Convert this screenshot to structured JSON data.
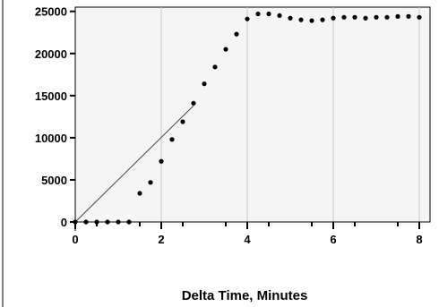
{
  "chart_data": {
    "type": "scatter",
    "title": "",
    "xlabel": "Delta Time, Minutes",
    "ylabel": "",
    "xlim": [
      0,
      8.25
    ],
    "ylim": [
      0,
      25500
    ],
    "x_ticks": [
      0,
      2,
      4,
      6,
      8
    ],
    "y_ticks": [
      0,
      5000,
      10000,
      15000,
      20000,
      25000
    ],
    "grid": "vertical",
    "colors": {
      "plot_background": "#f5f5f5",
      "point": "#000000",
      "grid": "#c8c8c8",
      "trend_line": "#444444"
    },
    "series": [
      {
        "x": [
          0,
          0.25,
          0.5,
          0.75,
          1.0,
          1.25,
          1.5,
          1.75,
          2.0,
          2.25,
          2.5,
          2.75,
          3.0,
          3.25,
          3.5,
          3.75,
          4.0,
          4.25,
          4.5,
          4.75,
          5.0,
          5.25,
          5.5,
          5.75,
          6.0,
          6.25,
          6.5,
          6.75,
          7.0,
          7.25,
          7.5,
          7.75,
          8.0
        ],
        "y": [
          0,
          0,
          0,
          0,
          0,
          0,
          3400,
          4700,
          7200,
          9800,
          11900,
          14100,
          16400,
          18400,
          20500,
          22300,
          24100,
          24700,
          24700,
          24500,
          24200,
          24000,
          23900,
          24000,
          24200,
          24300,
          24300,
          24200,
          24300,
          24300,
          24400,
          24400,
          24300
        ]
      }
    ],
    "trend_line": {
      "x": [
        0,
        2.75
      ],
      "y": [
        0,
        13800
      ]
    }
  }
}
